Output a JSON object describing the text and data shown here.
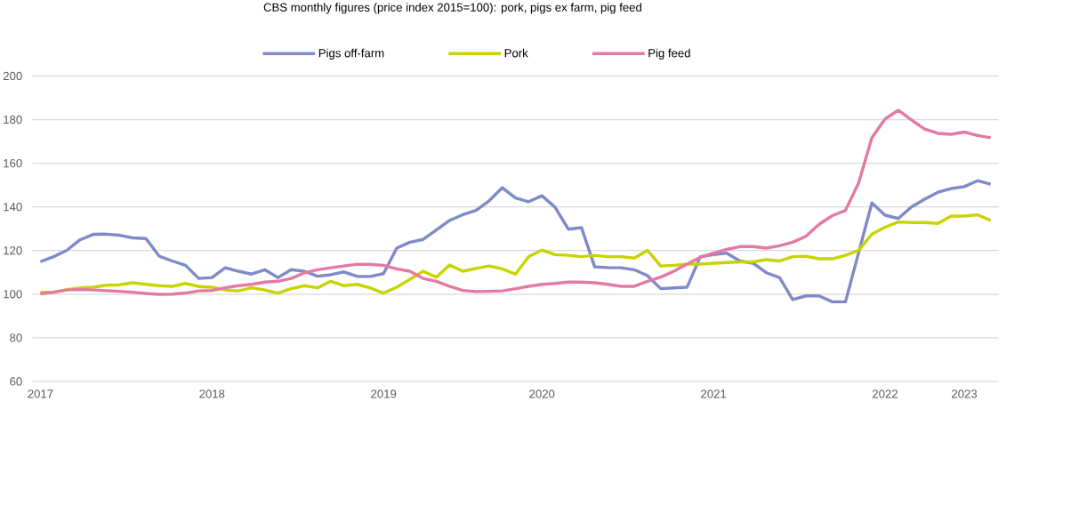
{
  "chart_data": {
    "type": "line",
    "title": "CBS monthly figures (price index 2015=100): pork, pigs ex farm, pig feed",
    "categories": [
      "2017",
      null,
      null,
      null,
      null,
      null,
      null,
      null,
      null,
      null,
      null,
      null,
      null,
      "2018",
      null,
      null,
      null,
      null,
      null,
      null,
      null,
      null,
      null,
      null,
      null,
      null,
      "2019",
      null,
      null,
      null,
      null,
      null,
      null,
      null,
      null,
      null,
      null,
      null,
      "2020",
      null,
      null,
      null,
      null,
      null,
      null,
      null,
      null,
      null,
      null,
      null,
      null,
      "2021",
      null,
      null,
      null,
      null,
      null,
      null,
      null,
      null,
      null,
      null,
      null,
      null,
      "2022",
      null,
      null,
      null,
      null,
      null,
      "2023",
      null,
      null
    ],
    "series": [
      {
        "name": "Pigs off-farm",
        "color": "#7f8ac8",
        "values": [
          114.9,
          117.2,
          120.1,
          124.9,
          127.4,
          127.5,
          127.0,
          125.8,
          125.5,
          117.4,
          115.2,
          113.2,
          107.2,
          107.6,
          112.1,
          110.5,
          109.2,
          111.2,
          107.6,
          111.2,
          110.5,
          108.2,
          108.9,
          110.2,
          108.2,
          108.1,
          109.4,
          121.1,
          123.8,
          125.1,
          129.4,
          133.8,
          136.4,
          138.4,
          142.8,
          148.8,
          144.1,
          142.4,
          145.1,
          139.8,
          129.8,
          130.5,
          112.5,
          112.2,
          112.1,
          111.2,
          108.5,
          102.5,
          102.9,
          103.2,
          117.2,
          118.1,
          118.8,
          115.2,
          114.2,
          109.8,
          107.6,
          97.5,
          99.2,
          99.2,
          96.5,
          96.5,
          119.1,
          141.8,
          136.2,
          134.7,
          140.0,
          143.5,
          146.7,
          148.4,
          149.3,
          152.0,
          150.4
        ]
      },
      {
        "name": "Pork",
        "color": "#c8d400",
        "values": [
          100.9,
          100.9,
          102.1,
          102.9,
          103.2,
          104.1,
          104.3,
          105.2,
          104.5,
          103.9,
          103.6,
          104.9,
          103.5,
          103.2,
          101.9,
          101.5,
          102.9,
          101.9,
          100.5,
          102.5,
          103.9,
          102.9,
          105.9,
          103.9,
          104.5,
          102.8,
          100.5,
          103.2,
          106.8,
          110.5,
          107.8,
          113.4,
          110.5,
          111.8,
          112.9,
          111.6,
          109.2,
          117.2,
          120.2,
          118.1,
          117.8,
          117.2,
          117.8,
          117.2,
          117.2,
          116.5,
          120.1,
          112.9,
          113.2,
          113.8,
          113.8,
          114.2,
          114.5,
          114.8,
          114.8,
          115.8,
          115.2,
          117.2,
          117.4,
          116.2,
          116.2,
          117.8,
          120.1,
          127.5,
          130.7,
          133.1,
          132.8,
          132.8,
          132.4,
          135.8,
          135.8,
          136.4,
          133.8
        ]
      },
      {
        "name": "Pig feed",
        "color": "#e27aa4",
        "values": [
          100.1,
          100.9,
          101.9,
          102.1,
          101.9,
          101.6,
          101.3,
          100.9,
          100.3,
          99.9,
          100.0,
          100.5,
          101.5,
          101.7,
          102.9,
          103.9,
          104.5,
          105.5,
          105.9,
          107.2,
          109.8,
          111.2,
          112.1,
          112.9,
          113.7,
          113.7,
          113.2,
          111.6,
          110.5,
          107.2,
          105.9,
          103.6,
          101.7,
          101.2,
          101.3,
          101.5,
          102.5,
          103.6,
          104.5,
          104.9,
          105.5,
          105.5,
          105.2,
          104.5,
          103.6,
          103.6,
          105.9,
          107.8,
          110.5,
          113.8,
          116.9,
          118.8,
          120.5,
          121.8,
          121.8,
          121.1,
          122.2,
          123.8,
          126.5,
          132.0,
          136.0,
          138.4,
          151.1,
          171.7,
          180.3,
          184.3,
          179.9,
          175.7,
          173.7,
          173.3,
          174.3,
          172.7,
          171.7
        ]
      }
    ],
    "ylim": [
      60,
      200
    ],
    "yticks": [
      60,
      80,
      100,
      120,
      140,
      160,
      180,
      200
    ],
    "grid": "y",
    "legend": "top",
    "line_style": "solid"
  }
}
